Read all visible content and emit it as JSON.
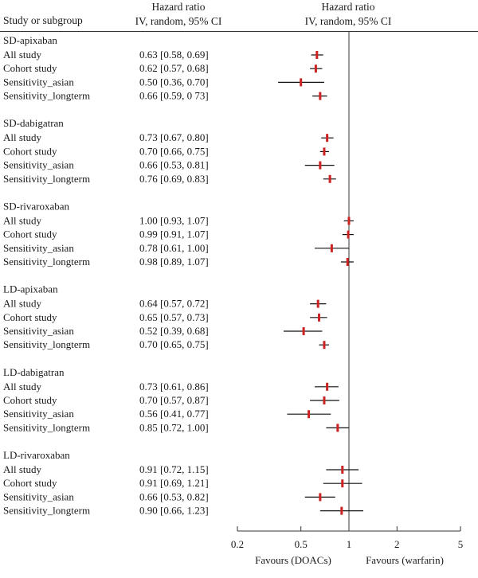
{
  "chart_data": {
    "type": "forest",
    "headers": {
      "study": "Study or subgroup",
      "effect_line1": "Hazard ratio",
      "effect_line2": "IV, random, 95% CI",
      "plot_line1": "Hazard ratio",
      "plot_line2": "IV, random, 95% CI"
    },
    "x_scale": "log",
    "xlim": [
      0.2,
      5
    ],
    "reference_line": 1,
    "xticks": [
      {
        "value": 0.2,
        "label": "0.2"
      },
      {
        "value": 0.5,
        "label": "0.5"
      },
      {
        "value": 1,
        "label": "1"
      },
      {
        "value": 2,
        "label": "2"
      },
      {
        "value": 5,
        "label": "5"
      }
    ],
    "favours_left": "Favours (DOACs)",
    "favours_right": "Favours (warfarin)",
    "colors": {
      "point": "#cc2222",
      "ci": "#111111",
      "axis": "#333333"
    },
    "groups": [
      {
        "name": "SD-apixaban",
        "rows": [
          {
            "label": "All study",
            "text": "0.63 [0.58, 0.69]",
            "hr": 0.63,
            "lo": 0.58,
            "hi": 0.69
          },
          {
            "label": "Cohort study",
            "text": "0.62 [0.57, 0.68]",
            "hr": 0.62,
            "lo": 0.57,
            "hi": 0.68
          },
          {
            "label": "Sensitivity_asian",
            "text": "0.50 [0.36, 0.70]",
            "hr": 0.5,
            "lo": 0.36,
            "hi": 0.7
          },
          {
            "label": "Sensitivity_longterm",
            "text": "0.66 [0.59, 0 73]",
            "hr": 0.66,
            "lo": 0.59,
            "hi": 0.73
          }
        ]
      },
      {
        "name": "SD-dabigatran",
        "rows": [
          {
            "label": "All study",
            "text": "0.73 [0.67, 0.80]",
            "hr": 0.73,
            "lo": 0.67,
            "hi": 0.8
          },
          {
            "label": "Cohort study",
            "text": "0.70 [0.66, 0.75]",
            "hr": 0.7,
            "lo": 0.66,
            "hi": 0.75
          },
          {
            "label": "Sensitivity_asian",
            "text": "0.66 [0.53, 0.81]",
            "hr": 0.66,
            "lo": 0.53,
            "hi": 0.81
          },
          {
            "label": "Sensitivity_longterm",
            "text": "0.76 [0.69, 0.83]",
            "hr": 0.76,
            "lo": 0.69,
            "hi": 0.83
          }
        ]
      },
      {
        "name": "SD-rivaroxaban",
        "rows": [
          {
            "label": "All study",
            "text": "1.00 [0.93, 1.07]",
            "hr": 1.0,
            "lo": 0.93,
            "hi": 1.07
          },
          {
            "label": "Cohort study",
            "text": "0.99 [0.91, 1.07]",
            "hr": 0.99,
            "lo": 0.91,
            "hi": 1.07
          },
          {
            "label": "Sensitivity_asian",
            "text": "0.78 [0.61, 1.00]",
            "hr": 0.78,
            "lo": 0.61,
            "hi": 1.0
          },
          {
            "label": "Sensitivity_longterm",
            "text": "0.98 [0.89, 1.07]",
            "hr": 0.98,
            "lo": 0.89,
            "hi": 1.07
          }
        ]
      },
      {
        "name": "LD-apixaban",
        "rows": [
          {
            "label": "All study",
            "text": "0.64 [0.57, 0.72]",
            "hr": 0.64,
            "lo": 0.57,
            "hi": 0.72
          },
          {
            "label": "Cohort study",
            "text": "0.65 [0.57, 0.73]",
            "hr": 0.65,
            "lo": 0.57,
            "hi": 0.73
          },
          {
            "label": "Sensitivity_asian",
            "text": "0.52 [0.39, 0.68]",
            "hr": 0.52,
            "lo": 0.39,
            "hi": 0.68
          },
          {
            "label": "Sensitivity_longterm",
            "text": "0.70 [0.65, 0.75]",
            "hr": 0.7,
            "lo": 0.65,
            "hi": 0.75
          }
        ]
      },
      {
        "name": "LD-dabigatran",
        "rows": [
          {
            "label": "All study",
            "text": "0.73 [0.61, 0.86]",
            "hr": 0.73,
            "lo": 0.61,
            "hi": 0.86
          },
          {
            "label": "Cohort study",
            "text": "0.70 [0.57, 0.87]",
            "hr": 0.7,
            "lo": 0.57,
            "hi": 0.87
          },
          {
            "label": "Sensitivity_asian",
            "text": "0.56 [0.41, 0.77]",
            "hr": 0.56,
            "lo": 0.41,
            "hi": 0.77
          },
          {
            "label": "Sensitivity_longterm",
            "text": "0.85 [0.72, 1.00]",
            "hr": 0.85,
            "lo": 0.72,
            "hi": 1.0
          }
        ]
      },
      {
        "name": "LD-rivaroxaban",
        "rows": [
          {
            "label": "All study",
            "text": "0.91 [0.72, 1.15]",
            "hr": 0.91,
            "lo": 0.72,
            "hi": 1.15
          },
          {
            "label": "Cohort study",
            "text": "0.91 [0.69, 1.21]",
            "hr": 0.91,
            "lo": 0.69,
            "hi": 1.21
          },
          {
            "label": "Sensitivity_asian",
            "text": "0.66 [0.53, 0.82]",
            "hr": 0.66,
            "lo": 0.53,
            "hi": 0.82
          },
          {
            "label": "Sensitivity_longterm",
            "text": "0.90 [0.66, 1.23]",
            "hr": 0.9,
            "lo": 0.66,
            "hi": 1.23
          }
        ]
      }
    ]
  }
}
